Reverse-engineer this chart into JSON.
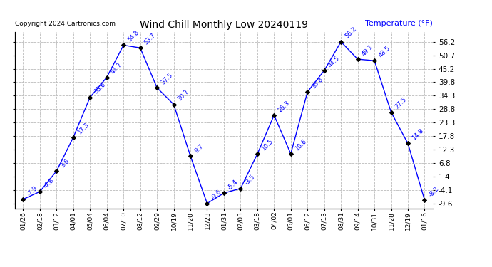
{
  "title": "Wind Chill Monthly Low 20240119",
  "ylabel": "Temperature (°F)",
  "copyright": "Copyright 2024 Cartronics.com",
  "x_labels": [
    "01/26",
    "02/18",
    "03/12",
    "04/01",
    "05/04",
    "06/04",
    "07/10",
    "08/12",
    "09/29",
    "10/19",
    "11/20",
    "12/23",
    "01/31",
    "02/03",
    "03/18",
    "04/02",
    "05/01",
    "06/12",
    "07/13",
    "08/31",
    "09/14",
    "10/31",
    "11/28",
    "12/19",
    "01/16"
  ],
  "values": [
    -7.9,
    -4.8,
    3.6,
    17.3,
    33.6,
    41.7,
    54.8,
    53.7,
    37.5,
    30.7,
    9.7,
    -9.6,
    -5.4,
    -3.5,
    10.5,
    26.3,
    10.6,
    35.8,
    44.5,
    56.2,
    49.1,
    48.5,
    27.5,
    14.8,
    -8.2
  ],
  "line_color": "blue",
  "marker_color": "black",
  "label_color": "blue",
  "grid_color": "#bbbbbb",
  "bg_color": "white",
  "ylim_min": -9.6,
  "ylim_max": 56.2,
  "yticks": [
    -9.6,
    -4.1,
    1.4,
    6.8,
    12.3,
    17.8,
    23.3,
    28.8,
    34.3,
    39.8,
    45.2,
    50.7,
    56.2
  ]
}
